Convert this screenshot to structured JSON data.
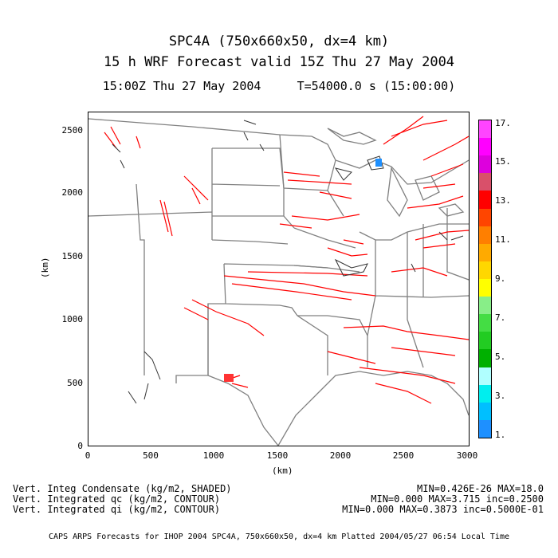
{
  "header": {
    "title_line1": "SPC4A (750x660x50, dx=4 km)",
    "title_line2": "15 h WRF Forecast valid 15Z Thu 27 May 2004",
    "time_line": "15:00Z Thu 27 May 2004     T=54000.0 s (15:00:00)"
  },
  "axes": {
    "y_ticks": [
      "2500",
      "2000",
      "1500",
      "1000",
      "500",
      "0"
    ],
    "x_ticks": [
      "0",
      "500",
      "1000",
      "1500",
      "2000",
      "2500",
      "3000"
    ],
    "y_label": "(km)",
    "x_label": "(km)",
    "x_range": [
      0,
      3000
    ],
    "y_range": [
      0,
      2640
    ]
  },
  "colorbar": {
    "labels": [
      "17.",
      "15.",
      "13.",
      "11.",
      "9.",
      "7.",
      "5.",
      "3.",
      "1."
    ],
    "colors": [
      "#1E90FF",
      "#00BFFF",
      "#00EEEE",
      "#B0FFFF",
      "#00B000",
      "#22CC22",
      "#44DD44",
      "#88EE88",
      "#FFFF00",
      "#FFD700",
      "#FFAA00",
      "#FF7F00",
      "#FF4500",
      "#FF0000",
      "#D9506A",
      "#DD00DD",
      "#FF00FF",
      "#FF44FF"
    ]
  },
  "footer": {
    "left_line1": "Vert. Integ Condensate (kg/m2, SHADED)",
    "left_line2": "Vert. Integrated qc (kg/m2, CONTOUR)",
    "left_line3": "Vert. Integrated qi (kg/m2, CONTOUR)",
    "right_line1": "MIN=0.426E-26 MAX=18.0",
    "right_line2": "MIN=0.000 MAX=3.715 inc=0.2500",
    "right_line3": "MIN=0.000 MAX=0.3873 inc=0.5000E-01",
    "footnote": "CAPS ARPS Forecasts for IHOP 2004  SPC4A, 750x660x50, dx=4 km  Platted 2004/05/27 06:54 Local Time"
  },
  "colors": {
    "qc_contour": "#FF0000",
    "qi_contour": "#333333",
    "state_border": "#808080"
  }
}
